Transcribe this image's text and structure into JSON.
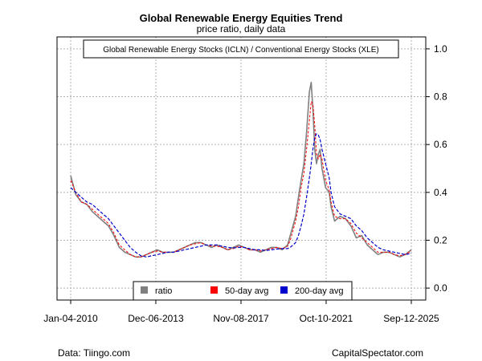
{
  "header": {
    "title": "Global Renewable Energy Equities Trend",
    "subtitle": "price ratio, daily data"
  },
  "footer": {
    "source": "Data: Tiingo.com",
    "credit": "CapitalSpectator.com"
  },
  "colors": {
    "ratio": "#808080",
    "ma50": "#ff0000",
    "ma200": "#0000cc",
    "grid": "#b0b0b0"
  },
  "chart_data": {
    "type": "line",
    "title": "Global Renewable Energy Equities Trend",
    "subtitle": "price ratio, daily data",
    "annotation": "Global Renewable Energy Stocks (ICLN) / Conventional Energy Stocks (XLE)",
    "y_axis_side": "right",
    "ylim": [
      -0.05,
      1.05
    ],
    "y_ticks": [
      0.0,
      0.2,
      0.4,
      0.6,
      0.8,
      1.0
    ],
    "y_tick_labels": [
      "0.0",
      "0.2",
      "0.4",
      "0.6",
      "0.8",
      "1.0"
    ],
    "x_domain": [
      "2010-01-04",
      "2025-09-12"
    ],
    "x_ticks": [
      "2010-01-04",
      "2013-12-06",
      "2017-11-08",
      "2021-10-10",
      "2025-09-12"
    ],
    "x_tick_labels": [
      "Jan-04-2010",
      "Dec-06-2013",
      "Nov-08-2017",
      "Oct-10-2021",
      "Sep-12-2025"
    ],
    "grid": true,
    "legend": {
      "placement": "bottom-center",
      "entries": [
        "ratio",
        "50-day avg",
        "200-day avg"
      ]
    },
    "x": [
      "2010-01-04",
      "2010-04-01",
      "2010-07-01",
      "2010-10-01",
      "2011-01-01",
      "2011-04-01",
      "2011-07-01",
      "2011-10-01",
      "2012-01-01",
      "2012-04-01",
      "2012-07-01",
      "2012-10-01",
      "2013-01-01",
      "2013-04-01",
      "2013-07-01",
      "2013-10-01",
      "2014-01-01",
      "2014-04-01",
      "2014-07-01",
      "2014-10-01",
      "2015-01-01",
      "2015-04-01",
      "2015-07-01",
      "2015-10-01",
      "2016-01-01",
      "2016-04-01",
      "2016-07-01",
      "2016-10-01",
      "2017-01-01",
      "2017-04-01",
      "2017-07-01",
      "2017-10-01",
      "2018-01-01",
      "2018-04-01",
      "2018-07-01",
      "2018-10-01",
      "2019-01-01",
      "2019-04-01",
      "2019-07-01",
      "2019-10-01",
      "2020-01-01",
      "2020-02-15",
      "2020-04-01",
      "2020-05-15",
      "2020-07-01",
      "2020-08-15",
      "2020-10-01",
      "2020-11-15",
      "2021-01-01",
      "2021-02-01",
      "2021-03-01",
      "2021-04-01",
      "2021-05-01",
      "2021-06-01",
      "2021-07-01",
      "2021-08-01",
      "2021-10-01",
      "2021-12-01",
      "2022-01-01",
      "2022-03-01",
      "2022-06-01",
      "2022-09-01",
      "2022-12-01",
      "2023-03-01",
      "2023-06-01",
      "2023-09-01",
      "2023-12-01",
      "2024-03-01",
      "2024-06-01",
      "2024-09-01",
      "2024-12-01",
      "2025-03-01",
      "2025-06-01",
      "2025-09-12"
    ],
    "series": [
      {
        "name": "ratio",
        "values": [
          0.47,
          0.39,
          0.36,
          0.35,
          0.32,
          0.3,
          0.28,
          0.26,
          0.22,
          0.17,
          0.15,
          0.14,
          0.13,
          0.13,
          0.14,
          0.15,
          0.16,
          0.15,
          0.15,
          0.15,
          0.16,
          0.17,
          0.18,
          0.19,
          0.19,
          0.18,
          0.17,
          0.18,
          0.17,
          0.16,
          0.17,
          0.18,
          0.17,
          0.16,
          0.16,
          0.15,
          0.16,
          0.17,
          0.17,
          0.16,
          0.18,
          0.22,
          0.26,
          0.3,
          0.38,
          0.45,
          0.52,
          0.65,
          0.82,
          0.86,
          0.75,
          0.58,
          0.52,
          0.56,
          0.58,
          0.5,
          0.42,
          0.4,
          0.34,
          0.28,
          0.3,
          0.29,
          0.26,
          0.21,
          0.22,
          0.18,
          0.16,
          0.14,
          0.15,
          0.15,
          0.14,
          0.13,
          0.14,
          0.16
        ]
      },
      {
        "name": "50-day avg",
        "values": [
          0.45,
          0.4,
          0.36,
          0.35,
          0.33,
          0.31,
          0.29,
          0.27,
          0.23,
          0.18,
          0.16,
          0.14,
          0.13,
          0.13,
          0.14,
          0.15,
          0.155,
          0.15,
          0.15,
          0.15,
          0.16,
          0.17,
          0.18,
          0.185,
          0.19,
          0.18,
          0.175,
          0.175,
          0.17,
          0.16,
          0.165,
          0.175,
          0.17,
          0.16,
          0.16,
          0.155,
          0.16,
          0.165,
          0.17,
          0.165,
          0.175,
          0.2,
          0.24,
          0.28,
          0.34,
          0.42,
          0.48,
          0.58,
          0.7,
          0.78,
          0.77,
          0.68,
          0.56,
          0.54,
          0.56,
          0.54,
          0.45,
          0.41,
          0.36,
          0.3,
          0.29,
          0.29,
          0.27,
          0.23,
          0.21,
          0.19,
          0.17,
          0.15,
          0.15,
          0.15,
          0.14,
          0.135,
          0.14,
          0.155
        ]
      },
      {
        "name": "200-day avg",
        "values": [
          0.42,
          0.4,
          0.38,
          0.36,
          0.35,
          0.33,
          0.31,
          0.29,
          0.26,
          0.23,
          0.2,
          0.17,
          0.15,
          0.135,
          0.13,
          0.135,
          0.14,
          0.145,
          0.15,
          0.15,
          0.155,
          0.16,
          0.165,
          0.17,
          0.175,
          0.18,
          0.18,
          0.18,
          0.175,
          0.17,
          0.168,
          0.17,
          0.17,
          0.165,
          0.16,
          0.16,
          0.157,
          0.16,
          0.163,
          0.165,
          0.165,
          0.17,
          0.18,
          0.19,
          0.22,
          0.26,
          0.31,
          0.38,
          0.46,
          0.52,
          0.58,
          0.63,
          0.645,
          0.64,
          0.62,
          0.58,
          0.52,
          0.46,
          0.4,
          0.34,
          0.31,
          0.3,
          0.29,
          0.26,
          0.24,
          0.21,
          0.19,
          0.17,
          0.16,
          0.155,
          0.15,
          0.145,
          0.14,
          0.145
        ]
      }
    ]
  }
}
